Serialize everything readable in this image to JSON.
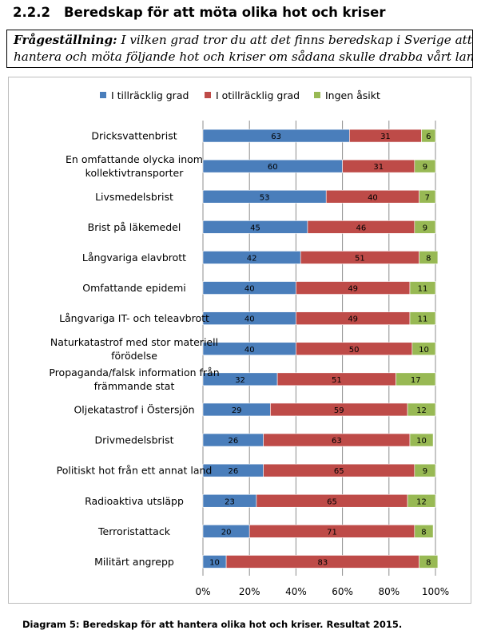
{
  "section": {
    "number": "2.2.2",
    "title": "Beredskap för att möta olika hot och kriser"
  },
  "question": {
    "label": "Frågeställning:",
    "line1": "I vilken grad tror du att det finns beredskap i Sverige att",
    "line2": "hantera och möta följande hot och kriser om sådana skulle drabba vårt land?"
  },
  "caption": "Diagram 5: Beredskap för att hantera olika hot och kriser. Resultat 2015.",
  "chart_data": {
    "type": "bar",
    "orientation": "horizontal",
    "stacked": true,
    "percent_stacked": true,
    "categories": [
      [
        "Dricksvattenbrist"
      ],
      [
        "En omfattande olycka inom",
        "kollektivtransporter"
      ],
      [
        "Livsmedelsbrist"
      ],
      [
        "Brist på läkemedel"
      ],
      [
        "Långvariga elavbrott"
      ],
      [
        "Omfattande epidemi"
      ],
      [
        "Långvariga IT- och teleavbrott"
      ],
      [
        "Naturkatastrof med stor materiell",
        "förödelse"
      ],
      [
        "Propaganda/falsk information från",
        "främmande stat"
      ],
      [
        "Oljekatastrof i Östersjön"
      ],
      [
        "Drivmedelsbrist"
      ],
      [
        "Politiskt hot från ett annat land"
      ],
      [
        "Radioaktiva utsläpp"
      ],
      [
        "Terroristattack"
      ],
      [
        "Militärt angrepp"
      ]
    ],
    "series": [
      {
        "name": "I tillräcklig grad",
        "color": "#4a7ebb",
        "values": [
          63,
          60,
          53,
          45,
          42,
          40,
          40,
          40,
          32,
          29,
          26,
          26,
          23,
          20,
          10
        ]
      },
      {
        "name": "I otillräcklig grad",
        "color": "#be4b48",
        "values": [
          31,
          31,
          40,
          46,
          51,
          49,
          49,
          50,
          51,
          59,
          63,
          65,
          65,
          71,
          83
        ]
      },
      {
        "name": "Ingen åsikt",
        "color": "#98b954",
        "values": [
          6,
          9,
          7,
          9,
          8,
          11,
          11,
          10,
          17,
          12,
          10,
          9,
          12,
          8,
          8
        ]
      }
    ],
    "xlim": [
      0,
      100
    ],
    "x_ticks": [
      "0%",
      "20%",
      "40%",
      "60%",
      "80%",
      "100%"
    ],
    "grid": true,
    "legend_position": "top"
  }
}
